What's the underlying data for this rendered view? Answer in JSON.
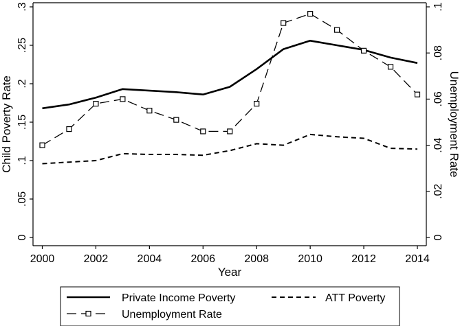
{
  "chart_data": {
    "type": "line",
    "title": "",
    "xlabel": "Year",
    "ylabel": "Child Poverty Rate",
    "y2label": "Unemployment Rate",
    "xlim": [
      2000,
      2014
    ],
    "ylim": [
      0,
      0.3
    ],
    "y2lim": [
      0,
      0.1
    ],
    "x_ticks": [
      2000,
      2002,
      2004,
      2006,
      2008,
      2010,
      2012,
      2014
    ],
    "x_tick_labels": [
      "2000",
      "2002",
      "2004",
      "2006",
      "2008",
      "2010",
      "2012",
      "2014"
    ],
    "y_ticks": [
      0,
      0.05,
      0.1,
      0.15,
      0.2,
      0.25,
      0.3
    ],
    "y_tick_labels": [
      "0",
      ".05",
      ".1",
      ".15",
      ".2",
      ".25",
      ".3"
    ],
    "y2_ticks": [
      0,
      0.02,
      0.04,
      0.06,
      0.08,
      0.1
    ],
    "y2_tick_labels": [
      "0",
      ".02",
      ".04",
      ".06",
      ".08",
      ".1"
    ],
    "grid": false,
    "legend_position": "bottom",
    "x": [
      2000,
      2001,
      2002,
      2003,
      2004,
      2005,
      2006,
      2007,
      2008,
      2009,
      2010,
      2011,
      2012,
      2013,
      2014
    ],
    "series": [
      {
        "name": "Private Income Poverty",
        "axis": "left",
        "style": "solid",
        "color": "#000000",
        "values": [
          0.168,
          0.173,
          0.182,
          0.193,
          0.191,
          0.189,
          0.186,
          0.196,
          0.219,
          0.245,
          0.256,
          0.25,
          0.244,
          0.234,
          0.227
        ]
      },
      {
        "name": "ATT Poverty",
        "axis": "left",
        "style": "dashed",
        "color": "#000000",
        "values": [
          0.096,
          0.098,
          0.1,
          0.109,
          0.108,
          0.108,
          0.107,
          0.113,
          0.122,
          0.12,
          0.134,
          0.131,
          0.129,
          0.116,
          0.115
        ]
      },
      {
        "name": "Unemployment Rate",
        "axis": "right",
        "style": "longdash-square-markers",
        "color": "#000000",
        "values": [
          0.04,
          0.047,
          0.058,
          0.06,
          0.055,
          0.051,
          0.046,
          0.046,
          0.058,
          0.093,
          0.097,
          0.09,
          0.081,
          0.074,
          0.062
        ]
      }
    ]
  }
}
